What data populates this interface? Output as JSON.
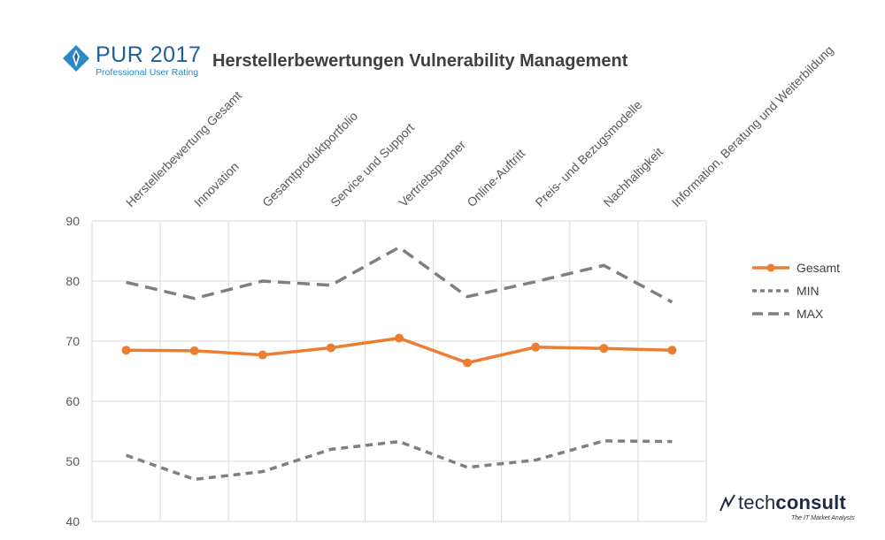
{
  "header": {
    "logo_main": "PUR 2017",
    "logo_sub": "Professional User Rating",
    "title": "Herstellerbewertungen Vulnerability Management"
  },
  "brand": {
    "name_light": "tech",
    "name_bold": "consult",
    "tagline": "The IT Market Analysts"
  },
  "colors": {
    "gesamt": "#ED7D31",
    "min": "#7F7F7F",
    "max": "#7F7F7F",
    "grid": "#D9D9D9",
    "text": "#595959"
  },
  "chart_data": {
    "type": "line",
    "categories": [
      "Herstellerbewertung Gesamt",
      "Innovation",
      "Gesamtproduktportfolio",
      "Service und Support",
      "Vertriebspartner",
      "Online-Auftritt",
      "Preis- und Bezugsmodelle",
      "Nachhaltigkeit",
      "Information, Beratung und Weiterbildung"
    ],
    "ylim": [
      40,
      90
    ],
    "yticks": [
      "40",
      "50",
      "60",
      "70",
      "80",
      "90"
    ],
    "grid": true,
    "legend_position": "right",
    "series": [
      {
        "name": "Gesamt",
        "style": "solid-markers",
        "values": [
          68.5,
          68.4,
          67.7,
          68.9,
          70.5,
          66.4,
          69.0,
          68.8,
          68.5
        ]
      },
      {
        "name": "MIN",
        "style": "dotted",
        "values": [
          51.0,
          47.0,
          48.3,
          52.0,
          53.3,
          49.0,
          50.2,
          53.4,
          53.3
        ]
      },
      {
        "name": "MAX",
        "style": "dashed",
        "values": [
          79.8,
          77.1,
          80.0,
          79.3,
          85.6,
          77.4,
          79.9,
          82.6,
          76.5
        ]
      }
    ]
  }
}
